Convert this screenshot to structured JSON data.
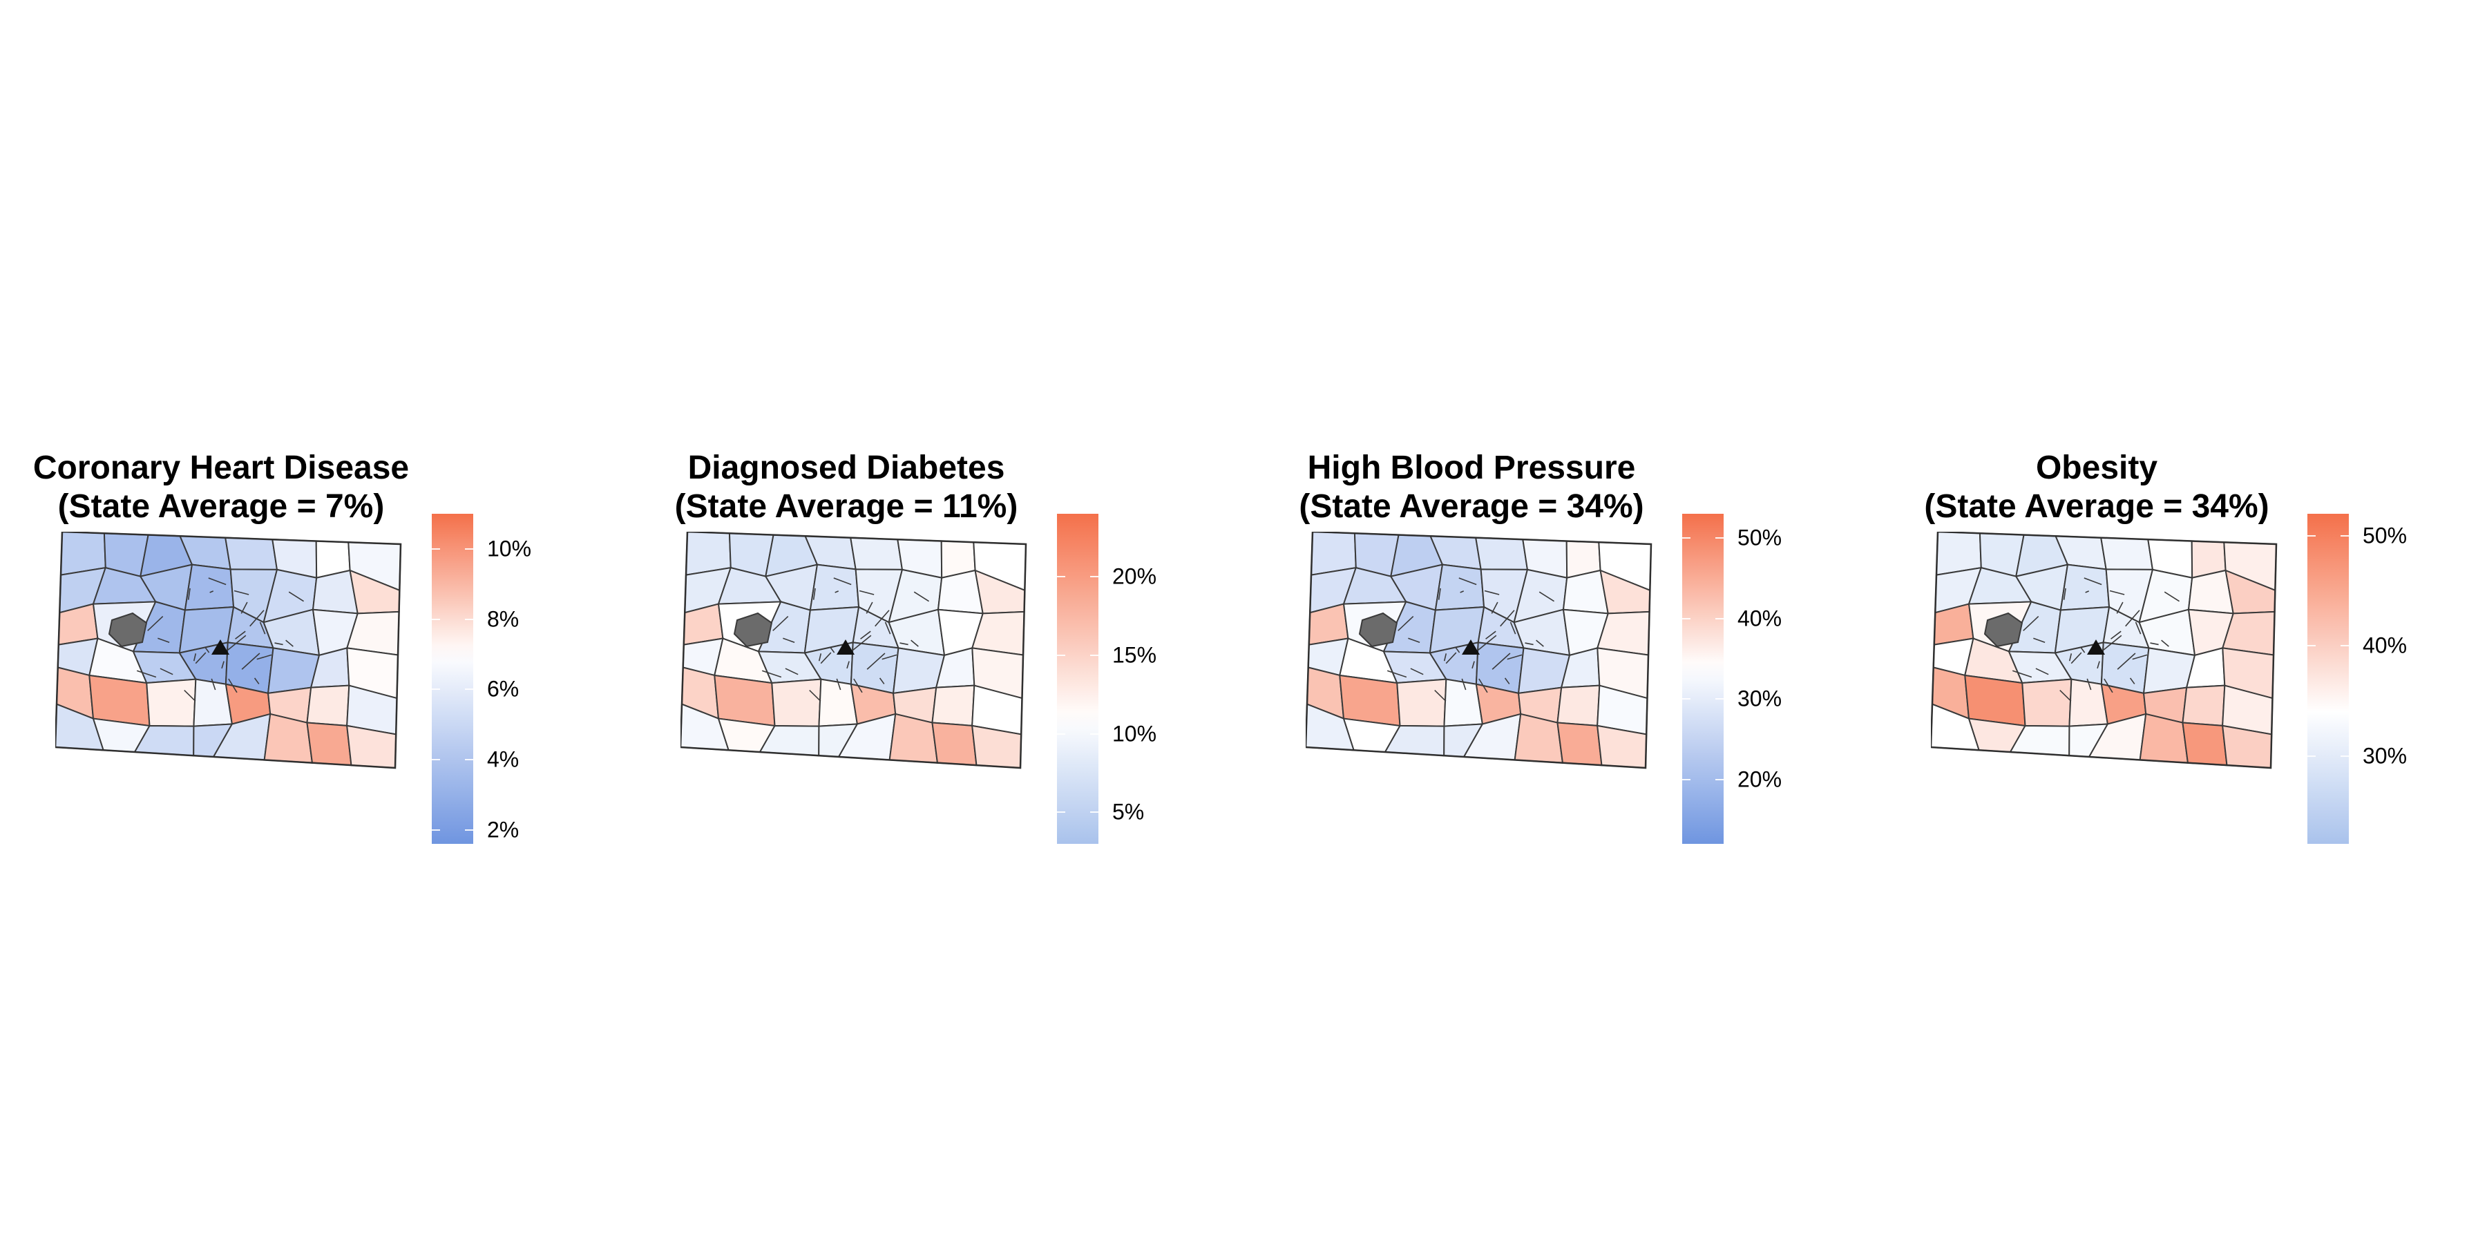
{
  "panels": [
    {
      "title_line1": "Coronary Heart Disease",
      "title_line2": "(State Average = 7%)",
      "legend": {
        "min": 1.6,
        "max": 11,
        "midpoint": 7,
        "ticks": [
          "2%",
          "4%",
          "6%",
          "8%",
          "10%"
        ],
        "tick_values": [
          2,
          4,
          6,
          8,
          10
        ],
        "colors": {
          "low": "#6f95e0",
          "mid": "#ffffff",
          "high": "#f4704a"
        }
      },
      "region_values": [
        4.5,
        3.8,
        3.2,
        4.2,
        5.0,
        6.1,
        7.0,
        6.6,
        4.6,
        4.0,
        3.9,
        3.5,
        4.8,
        5.2,
        6.0,
        7.9,
        8.5,
        6.2,
        3.4,
        3.6,
        4.1,
        5.5,
        6.4,
        7.2,
        5.6,
        6.8,
        4.5,
        3.2,
        3.0,
        4.0,
        5.8,
        7.1,
        8.8,
        9.6,
        7.4,
        6.5,
        9.8,
        8.2,
        7.6,
        6.3,
        5.5,
        6.6,
        5.2,
        5.0,
        5.6,
        8.6,
        9.4,
        7.8
      ]
    },
    {
      "title_line1": "Diagnosed Diabetes",
      "title_line2": "(State Average = 11%)",
      "legend": {
        "min": 3,
        "max": 24,
        "midpoint": 11,
        "ticks": [
          "5%",
          "10%",
          "15%",
          "20%"
        ],
        "tick_values": [
          5,
          10,
          15,
          20
        ],
        "colors": {
          "low": "#a9c2ec",
          "mid": "#ffffff",
          "high": "#f4704a"
        }
      },
      "region_values": [
        8,
        7.5,
        7,
        8,
        9,
        10,
        11.5,
        11,
        8.5,
        8,
        8,
        7.5,
        9,
        9.5,
        10.5,
        13,
        15,
        11,
        7.5,
        7.5,
        8,
        9.5,
        11,
        12.5,
        10,
        11.5,
        8.5,
        7,
        6.5,
        8,
        10,
        12,
        15,
        18,
        13,
        11.5,
        17,
        14,
        12.5,
        11,
        10,
        11.5,
        9.5,
        9.5,
        10,
        16,
        18,
        14
      ]
    },
    {
      "title_line1": "High Blood Pressure",
      "title_line2": "(State Average = 34%)",
      "legend": {
        "min": 12,
        "max": 53,
        "midpoint": 34,
        "ticks": [
          "20%",
          "30%",
          "40%",
          "50%"
        ],
        "tick_values": [
          20,
          30,
          40,
          50
        ],
        "colors": {
          "low": "#6f95e0",
          "mid": "#ffffff",
          "high": "#f4704a"
        }
      },
      "region_values": [
        28,
        26,
        24,
        27,
        29,
        32,
        35,
        34,
        28,
        27,
        26,
        25,
        29,
        30,
        33,
        38,
        42,
        33,
        24,
        25,
        27,
        30,
        33,
        36,
        31,
        34,
        28,
        24,
        22,
        27,
        31,
        35,
        42,
        46,
        37,
        33,
        44,
        40,
        37,
        33,
        31,
        34,
        30,
        30,
        32,
        41,
        45,
        38
      ]
    },
    {
      "title_line1": "Obesity",
      "title_line2": "(State Average = 34%)",
      "legend": {
        "min": 22,
        "max": 52,
        "midpoint": 34,
        "ticks": [
          "30%",
          "40%",
          "50%"
        ],
        "tick_values": [
          30,
          40,
          50
        ],
        "colors": {
          "low": "#a9c2ec",
          "mid": "#ffffff",
          "high": "#f4704a"
        }
      },
      "region_values": [
        31,
        30,
        29,
        31,
        32,
        34,
        37,
        36,
        31,
        30,
        30,
        29,
        32,
        33,
        35,
        40,
        44,
        35,
        29,
        29,
        31,
        33,
        36,
        39,
        34,
        37,
        31,
        29,
        28,
        31,
        34,
        38,
        44,
        48,
        39,
        36,
        46,
        42,
        39,
        36,
        34,
        37,
        33,
        33,
        35,
        43,
        47,
        40
      ]
    }
  ]
}
